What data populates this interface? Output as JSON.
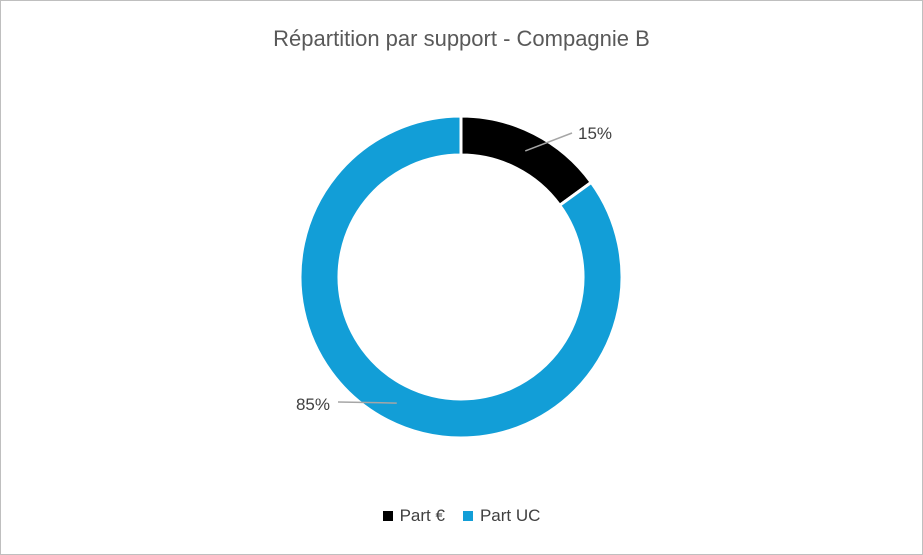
{
  "chart_data": {
    "type": "pie",
    "variant": "donut",
    "title": "Répartition par support - Compagnie B",
    "categories": [
      "Part €",
      "Part UC"
    ],
    "values": [
      15,
      85
    ],
    "data_labels": [
      "15%",
      "85%"
    ],
    "colors": [
      "#000000",
      "#129ed7"
    ],
    "legend_position": "bottom"
  }
}
